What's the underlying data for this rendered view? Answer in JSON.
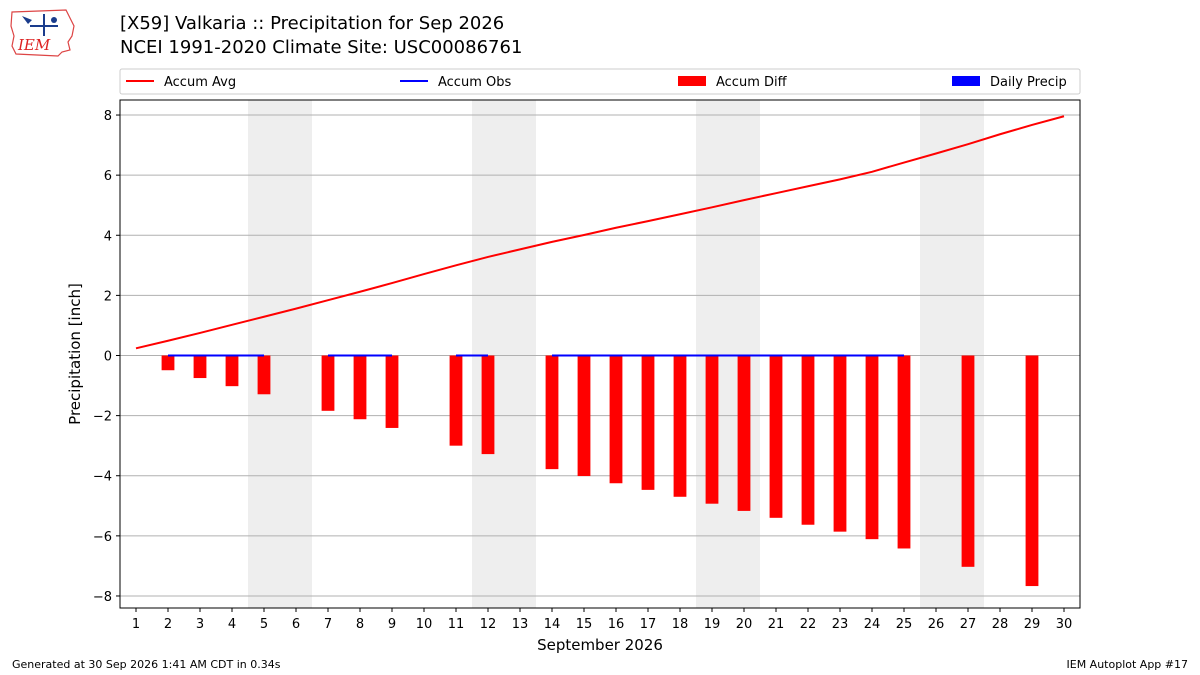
{
  "header": {
    "title_line1": "[X59] Valkaria :: Precipitation for Sep 2026",
    "title_line2": "NCEI 1991-2020 Climate Site: USC00086761",
    "logo_text": "IEM"
  },
  "footer": {
    "generated": "Generated at 30 Sep 2026 1:41 AM CDT in 0.34s",
    "app": "IEM Autoplot App #17"
  },
  "colors": {
    "avg": "#ff0000",
    "obs": "#0000ff",
    "diff": "#ff0000",
    "daily": "#0000ff",
    "weekend_band": "#eeeeee",
    "grid": "#b0b0b0"
  },
  "chart_data": {
    "type": "bar",
    "xlabel": "September 2026",
    "ylabel": "Precipitation [inch]",
    "xlim": [
      0.5,
      30.5
    ],
    "ylim": [
      -8.4,
      8.5
    ],
    "yticks": [
      -8,
      -6,
      -4,
      -2,
      0,
      2,
      4,
      6,
      8
    ],
    "grid": true,
    "legend": [
      {
        "key": "avg",
        "label": "Accum Avg",
        "kind": "line"
      },
      {
        "key": "obs",
        "label": "Accum Obs",
        "kind": "line"
      },
      {
        "key": "diff",
        "label": "Accum Diff",
        "kind": "patch"
      },
      {
        "key": "daily",
        "label": "Daily Precip",
        "kind": "patch"
      }
    ],
    "legend_placement": "top, outside plot",
    "weekend_bands": [
      [
        4.5,
        6.5
      ],
      [
        11.5,
        13.5
      ],
      [
        18.5,
        20.5
      ],
      [
        25.5,
        27.5
      ]
    ],
    "days": [
      1,
      2,
      3,
      4,
      5,
      6,
      7,
      8,
      9,
      10,
      11,
      12,
      13,
      14,
      15,
      16,
      17,
      18,
      19,
      20,
      21,
      22,
      23,
      24,
      25,
      26,
      27,
      28,
      29,
      30
    ],
    "accum_avg": [
      0.24,
      0.49,
      0.75,
      1.02,
      1.29,
      1.56,
      1.84,
      2.12,
      2.41,
      2.71,
      3.0,
      3.28,
      3.53,
      3.78,
      4.01,
      4.25,
      4.47,
      4.7,
      4.93,
      5.17,
      5.4,
      5.63,
      5.86,
      6.11,
      6.42,
      6.72,
      7.03,
      7.36,
      7.67,
      7.96
    ],
    "accum_obs_segments": [
      {
        "x": [
          2,
          3,
          4,
          5
        ],
        "y": [
          0,
          0,
          0,
          0
        ]
      },
      {
        "x": [
          7,
          8,
          9
        ],
        "y": [
          0,
          0,
          0
        ]
      },
      {
        "x": [
          11,
          12
        ],
        "y": [
          0,
          0
        ]
      },
      {
        "x": [
          14,
          15,
          16,
          17,
          18,
          19,
          20,
          21,
          22,
          23,
          24,
          25
        ],
        "y": [
          0,
          0,
          0,
          0,
          0,
          0,
          0,
          0,
          0,
          0,
          0,
          0
        ]
      }
    ],
    "accum_diff": [
      {
        "day": 2,
        "value": -0.49
      },
      {
        "day": 3,
        "value": -0.75
      },
      {
        "day": 4,
        "value": -1.02
      },
      {
        "day": 5,
        "value": -1.29
      },
      {
        "day": 7,
        "value": -1.84
      },
      {
        "day": 8,
        "value": -2.12
      },
      {
        "day": 9,
        "value": -2.41
      },
      {
        "day": 11,
        "value": -3.0
      },
      {
        "day": 12,
        "value": -3.28
      },
      {
        "day": 14,
        "value": -3.78
      },
      {
        "day": 15,
        "value": -4.01
      },
      {
        "day": 16,
        "value": -4.25
      },
      {
        "day": 17,
        "value": -4.47
      },
      {
        "day": 18,
        "value": -4.7
      },
      {
        "day": 19,
        "value": -4.93
      },
      {
        "day": 20,
        "value": -5.17
      },
      {
        "day": 21,
        "value": -5.4
      },
      {
        "day": 22,
        "value": -5.63
      },
      {
        "day": 23,
        "value": -5.86
      },
      {
        "day": 24,
        "value": -6.11
      },
      {
        "day": 25,
        "value": -6.42
      },
      {
        "day": 27,
        "value": -7.03
      },
      {
        "day": 29,
        "value": -7.67
      }
    ],
    "daily_precip": []
  }
}
